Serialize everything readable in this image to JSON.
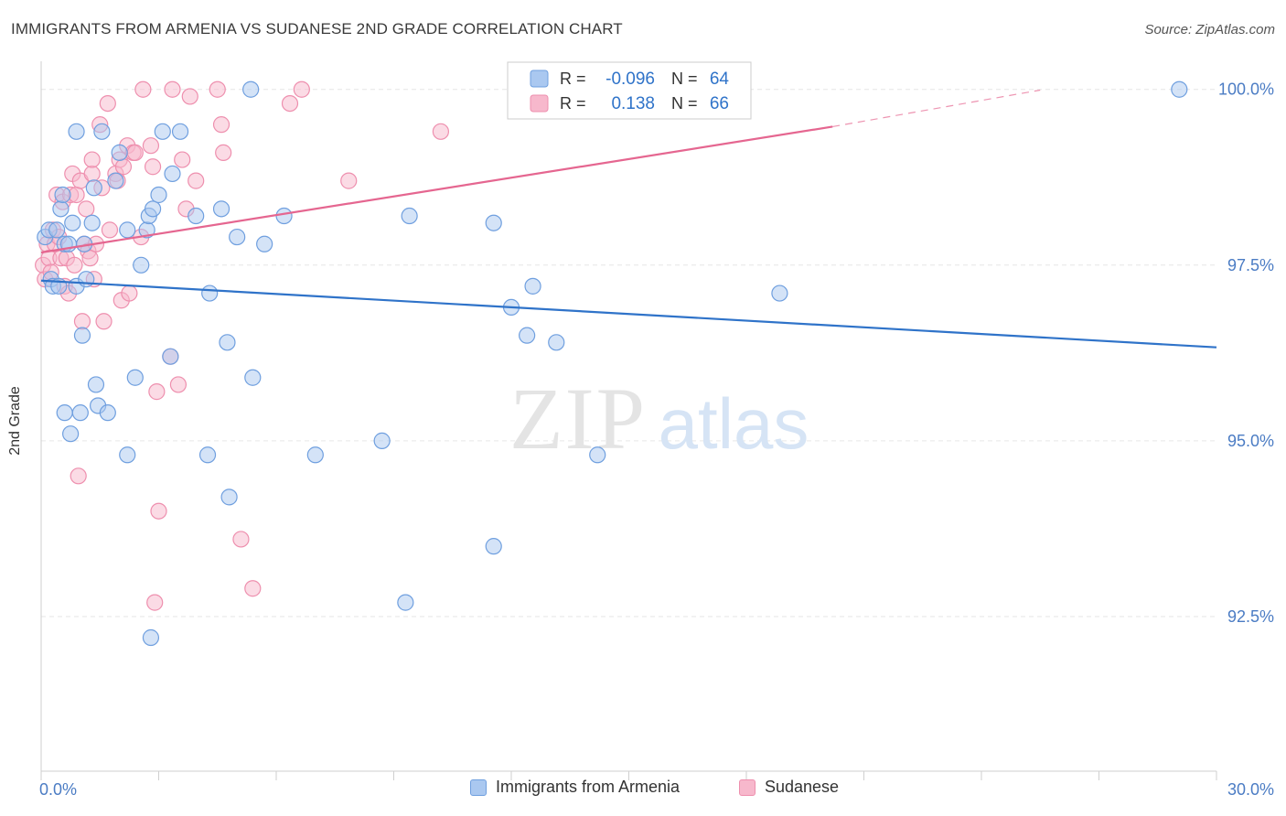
{
  "header": {
    "title": "IMMIGRANTS FROM ARMENIA VS SUDANESE 2ND GRADE CORRELATION CHART",
    "source": "Source: ZipAtlas.com"
  },
  "watermark": {
    "zip": "ZIP",
    "atlas": "atlas"
  },
  "colors": {
    "blue_fill": "#aac8f0",
    "blue_stroke": "#6f9fdf",
    "blue_line": "#2f73c9",
    "pink_fill": "#f7b8cc",
    "pink_stroke": "#ee8fae",
    "pink_line": "#e56690",
    "tick_label": "#4b7cc4",
    "grid": "#e6e6e6"
  },
  "chart_data": {
    "type": "scatter",
    "title": "IMMIGRANTS FROM ARMENIA VS SUDANESE 2ND GRADE CORRELATION CHART",
    "xlabel": "",
    "ylabel": "2nd Grade",
    "xlim": [
      0,
      30
    ],
    "ylim": [
      90.3,
      100.4
    ],
    "x_tick_labels": [
      {
        "value": 0,
        "label": "0.0%"
      },
      {
        "value": 30,
        "label": "30.0%"
      }
    ],
    "y_tick_labels": [
      {
        "value": 100,
        "label": "100.0%"
      },
      {
        "value": 97.5,
        "label": "97.5%"
      },
      {
        "value": 95,
        "label": "95.0%"
      },
      {
        "value": 92.5,
        "label": "92.5%"
      }
    ],
    "legend_stats": [
      {
        "r_label": "R =",
        "r_value": "-0.096",
        "n_label": "N =",
        "n_value": "64"
      },
      {
        "r_label": "R =",
        "r_value": "0.138",
        "n_label": "N =",
        "n_value": "66"
      }
    ],
    "series": [
      {
        "name": "Immigrants from Armenia",
        "trend": {
          "x": [
            0,
            30
          ],
          "y": [
            97.28,
            96.33
          ]
        },
        "points": [
          [
            0.1,
            97.9
          ],
          [
            0.2,
            98.0
          ],
          [
            0.25,
            97.3
          ],
          [
            0.3,
            97.2
          ],
          [
            0.4,
            98.0
          ],
          [
            0.45,
            97.2
          ],
          [
            0.5,
            98.3
          ],
          [
            0.55,
            98.5
          ],
          [
            0.6,
            97.8
          ],
          [
            0.6,
            95.4
          ],
          [
            0.7,
            97.8
          ],
          [
            0.75,
            95.1
          ],
          [
            0.8,
            98.1
          ],
          [
            0.9,
            99.4
          ],
          [
            0.9,
            97.2
          ],
          [
            1.0,
            95.4
          ],
          [
            1.05,
            96.5
          ],
          [
            1.1,
            97.8
          ],
          [
            1.15,
            97.3
          ],
          [
            1.3,
            98.1
          ],
          [
            1.35,
            98.6
          ],
          [
            1.4,
            95.8
          ],
          [
            1.45,
            95.5
          ],
          [
            1.55,
            99.4
          ],
          [
            1.7,
            95.4
          ],
          [
            1.9,
            98.7
          ],
          [
            2.0,
            99.1
          ],
          [
            2.2,
            94.8
          ],
          [
            2.2,
            98.0
          ],
          [
            2.4,
            95.9
          ],
          [
            2.55,
            97.5
          ],
          [
            2.7,
            98.0
          ],
          [
            2.75,
            98.2
          ],
          [
            2.8,
            92.2
          ],
          [
            2.85,
            98.3
          ],
          [
            3.0,
            98.5
          ],
          [
            3.1,
            99.4
          ],
          [
            3.3,
            96.2
          ],
          [
            3.35,
            98.8
          ],
          [
            3.55,
            99.4
          ],
          [
            3.95,
            98.2
          ],
          [
            4.25,
            94.8
          ],
          [
            4.3,
            97.1
          ],
          [
            4.6,
            98.3
          ],
          [
            4.75,
            96.4
          ],
          [
            4.8,
            94.2
          ],
          [
            5.0,
            97.9
          ],
          [
            5.35,
            100.0
          ],
          [
            5.4,
            95.9
          ],
          [
            5.7,
            97.8
          ],
          [
            6.2,
            98.2
          ],
          [
            7.0,
            94.8
          ],
          [
            8.7,
            95.0
          ],
          [
            9.3,
            92.7
          ],
          [
            9.4,
            98.2
          ],
          [
            11.55,
            98.1
          ],
          [
            11.55,
            93.5
          ],
          [
            12.0,
            96.9
          ],
          [
            12.4,
            96.5
          ],
          [
            12.55,
            97.2
          ],
          [
            13.15,
            96.4
          ],
          [
            14.2,
            94.8
          ],
          [
            18.85,
            97.1
          ],
          [
            29.05,
            100.0
          ]
        ]
      },
      {
        "name": "Sudanese",
        "trend": {
          "x": [
            0,
            20.2
          ],
          "y": [
            97.68,
            99.47
          ]
        },
        "trend_dashed": {
          "x": [
            20.2,
            25.5
          ],
          "y": [
            99.47,
            99.99
          ]
        },
        "points": [
          [
            0.05,
            97.5
          ],
          [
            0.1,
            97.3
          ],
          [
            0.15,
            97.8
          ],
          [
            0.2,
            97.6
          ],
          [
            0.25,
            97.4
          ],
          [
            0.3,
            98.0
          ],
          [
            0.35,
            97.8
          ],
          [
            0.4,
            98.5
          ],
          [
            0.45,
            97.9
          ],
          [
            0.5,
            97.6
          ],
          [
            0.55,
            98.4
          ],
          [
            0.6,
            97.2
          ],
          [
            0.65,
            97.6
          ],
          [
            0.7,
            97.1
          ],
          [
            0.75,
            98.5
          ],
          [
            0.8,
            98.8
          ],
          [
            0.85,
            97.5
          ],
          [
            0.9,
            98.5
          ],
          [
            0.95,
            94.5
          ],
          [
            1.0,
            98.7
          ],
          [
            1.05,
            96.7
          ],
          [
            1.1,
            97.8
          ],
          [
            1.15,
            98.3
          ],
          [
            1.2,
            97.7
          ],
          [
            1.25,
            97.6
          ],
          [
            1.3,
            98.8
          ],
          [
            1.3,
            99.0
          ],
          [
            1.35,
            97.3
          ],
          [
            1.4,
            97.8
          ],
          [
            1.5,
            99.5
          ],
          [
            1.55,
            98.6
          ],
          [
            1.6,
            96.7
          ],
          [
            1.7,
            99.8
          ],
          [
            1.75,
            98.0
          ],
          [
            1.9,
            98.8
          ],
          [
            1.95,
            98.7
          ],
          [
            2.0,
            99.0
          ],
          [
            2.05,
            97.0
          ],
          [
            2.1,
            98.9
          ],
          [
            2.2,
            99.2
          ],
          [
            2.25,
            97.1
          ],
          [
            2.35,
            99.1
          ],
          [
            2.4,
            99.1
          ],
          [
            2.55,
            97.9
          ],
          [
            2.6,
            100.0
          ],
          [
            2.8,
            99.2
          ],
          [
            2.85,
            98.9
          ],
          [
            2.9,
            92.7
          ],
          [
            2.95,
            95.7
          ],
          [
            3.0,
            94.0
          ],
          [
            3.3,
            96.2
          ],
          [
            3.35,
            100.0
          ],
          [
            3.5,
            95.8
          ],
          [
            3.6,
            99.0
          ],
          [
            3.7,
            98.3
          ],
          [
            3.8,
            99.9
          ],
          [
            3.95,
            98.7
          ],
          [
            4.5,
            100.0
          ],
          [
            4.6,
            99.5
          ],
          [
            4.65,
            99.1
          ],
          [
            5.1,
            93.6
          ],
          [
            5.4,
            92.9
          ],
          [
            6.35,
            99.8
          ],
          [
            6.65,
            100.0
          ],
          [
            7.85,
            98.7
          ],
          [
            10.2,
            99.4
          ]
        ]
      }
    ]
  }
}
